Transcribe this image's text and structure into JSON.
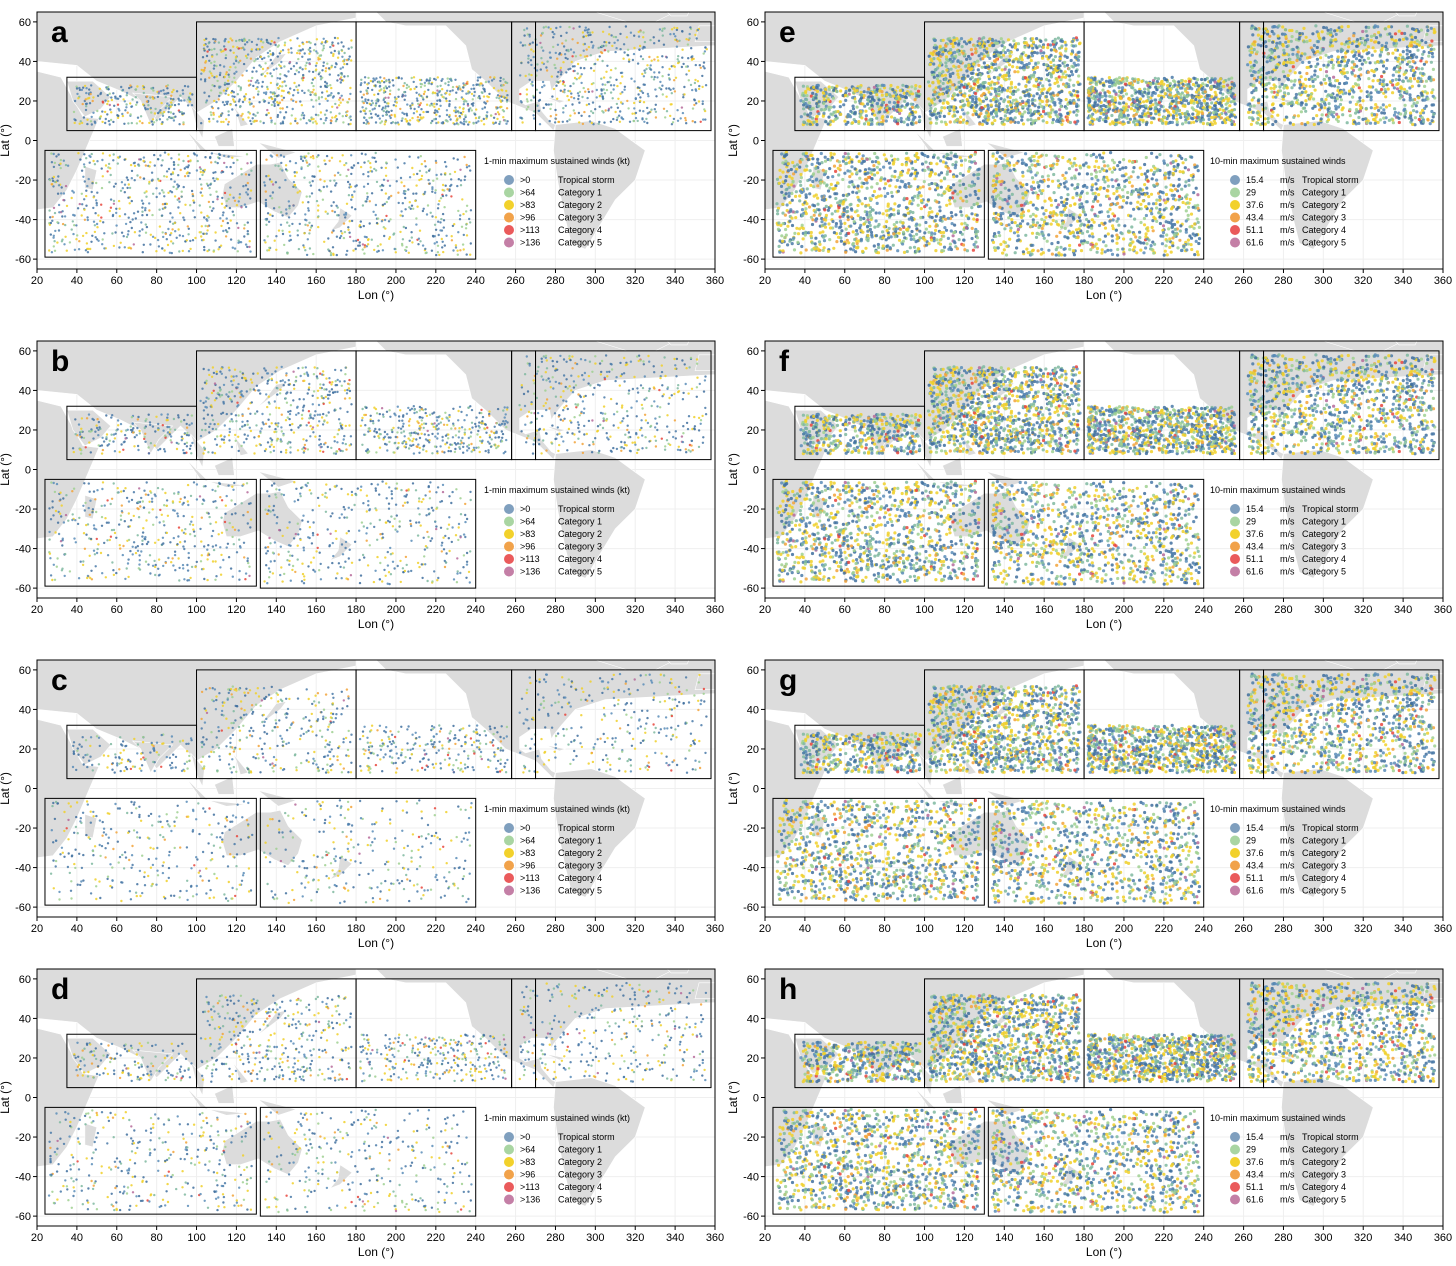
{
  "figure": {
    "xlabel": "Lon (°)",
    "ylabel": "Lat (°)",
    "x_ticks": [
      20,
      40,
      60,
      80,
      100,
      120,
      140,
      160,
      180,
      200,
      220,
      240,
      260,
      280,
      300,
      320,
      340,
      360
    ],
    "y_ticks": [
      -60,
      -40,
      -20,
      0,
      20,
      40,
      60
    ],
    "xlim": [
      20,
      360
    ],
    "ylim": [
      -65,
      65
    ]
  },
  "basin_boxes": [
    {
      "lon": [
        35,
        100
      ],
      "lat": [
        5,
        32
      ]
    },
    {
      "lon": [
        100,
        180
      ],
      "lat": [
        5,
        60
      ]
    },
    {
      "lon": [
        180,
        258
      ],
      "lat": [
        5,
        60
      ]
    },
    {
      "lon": [
        258,
        270
      ],
      "lat": [
        5,
        60
      ]
    },
    {
      "lon": [
        270,
        358
      ],
      "lat": [
        5,
        60
      ]
    },
    {
      "lon": [
        24,
        130
      ],
      "lat": [
        -59,
        -5
      ]
    },
    {
      "lon": [
        132,
        240
      ],
      "lat": [
        -60,
        -5
      ]
    }
  ],
  "legend_1min": {
    "title": "1-min maximum sustained winds (kt)",
    "items": [
      {
        "threshold": ">0",
        "label": "Tropical storm",
        "color": "#7f9fbe"
      },
      {
        "threshold": ">64",
        "label": "Category 1",
        "color": "#a9d5a2"
      },
      {
        "threshold": ">83",
        "label": "Category 2",
        "color": "#f2d12b"
      },
      {
        "threshold": ">96",
        "label": "Category 3",
        "color": "#f1a24a"
      },
      {
        "threshold": ">113",
        "label": "Category 4",
        "color": "#ea5a5b"
      },
      {
        "threshold": ">136",
        "label": "Category 5",
        "color": "#c47fa6"
      }
    ]
  },
  "legend_10min": {
    "title": "10-min maximum sustained winds",
    "items": [
      {
        "threshold": "15.4",
        "unit": "m/s",
        "label": "Tropical storm",
        "color": "#7f9fbe"
      },
      {
        "threshold": "29",
        "unit": "m/s",
        "label": "Category 1",
        "color": "#a9d5a2"
      },
      {
        "threshold": "37.6",
        "unit": "m/s",
        "label": "Category 2",
        "color": "#f2d12b"
      },
      {
        "threshold": "43.4",
        "unit": "m/s",
        "label": "Category 3",
        "color": "#f1a24a"
      },
      {
        "threshold": "51.1",
        "unit": "m/s",
        "label": "Category 4",
        "color": "#ea5a5b"
      },
      {
        "threshold": "61.6",
        "unit": "m/s",
        "label": "Category 5",
        "color": "#c47fa6"
      }
    ]
  },
  "chart_data": [
    {
      "type": "scatter",
      "panel": "a",
      "legend": "1min",
      "intensity": 0.55
    },
    {
      "type": "scatter",
      "panel": "b",
      "legend": "1min",
      "intensity": 0.4
    },
    {
      "type": "scatter",
      "panel": "c",
      "legend": "1min",
      "intensity": 0.28
    },
    {
      "type": "scatter",
      "panel": "d",
      "legend": "1min",
      "intensity": 0.32
    },
    {
      "type": "scatter",
      "panel": "e",
      "legend": "10min",
      "intensity": 1.0
    },
    {
      "type": "scatter",
      "panel": "f",
      "legend": "10min",
      "intensity": 1.0
    },
    {
      "type": "scatter",
      "panel": "g",
      "legend": "10min",
      "intensity": 0.95
    },
    {
      "type": "scatter",
      "panel": "h",
      "legend": "10min",
      "intensity": 1.0
    }
  ],
  "colors": {
    "land": "#dcdcdc",
    "ocean": "#ffffff",
    "frame": "#000000",
    "gridline": "#efefef"
  }
}
